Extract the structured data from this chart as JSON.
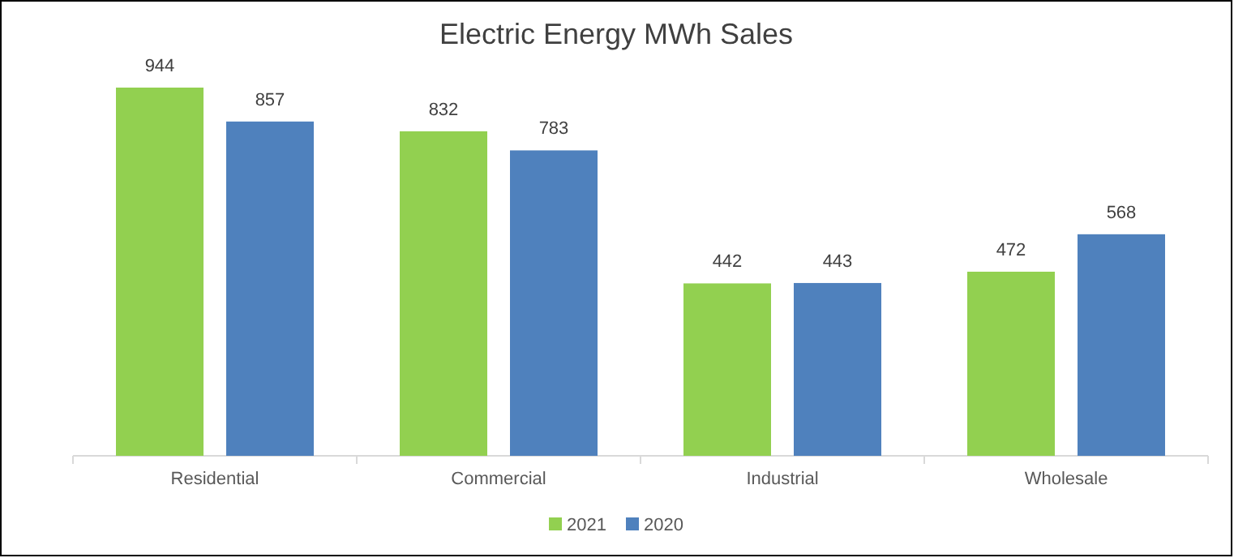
{
  "chart_data": {
    "type": "bar",
    "title": "Electric Energy MWh Sales",
    "categories": [
      "Residential",
      "Commercial",
      "Industrial",
      "Wholesale"
    ],
    "series": [
      {
        "name": "2021",
        "color": "#92d050",
        "values": [
          944,
          832,
          442,
          472
        ]
      },
      {
        "name": "2020",
        "color": "#4f81bd",
        "values": [
          857,
          783,
          443,
          568
        ]
      }
    ],
    "data_labels": true,
    "legend": "bottom",
    "tick_labels": "x"
  }
}
